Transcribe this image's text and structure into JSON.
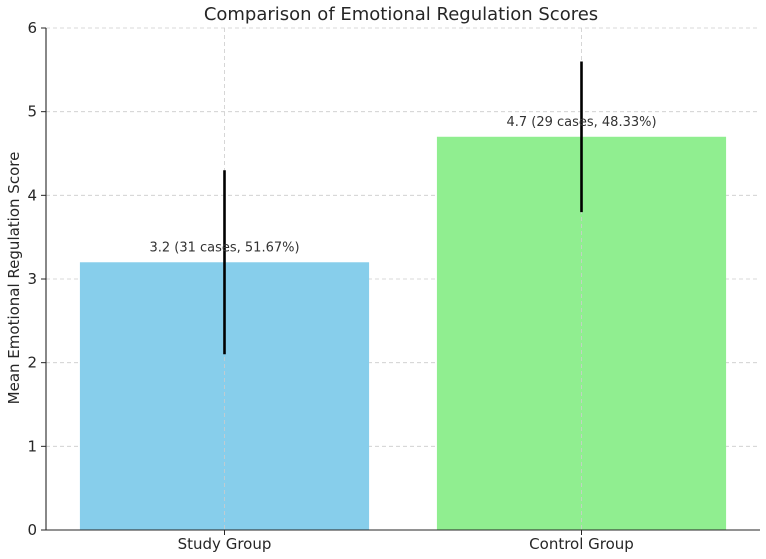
{
  "chart_data": {
    "type": "bar",
    "title": "Comparison of Emotional Regulation Scores",
    "xlabel": "",
    "ylabel": "Mean Emotional Regulation Score",
    "ylim": [
      0,
      6
    ],
    "yticks": [
      0,
      1,
      2,
      3,
      4,
      5,
      6
    ],
    "ytick_labels": [
      "0",
      "1",
      "2",
      "3",
      "4",
      "5",
      "6"
    ],
    "grid": true,
    "categories": [
      "Study Group",
      "Control Group"
    ],
    "values": [
      3.2,
      4.7
    ],
    "error_low": [
      2.1,
      3.8
    ],
    "error_high": [
      4.3,
      5.6
    ],
    "colors": [
      "#87ceeb",
      "#90ee90"
    ],
    "data_labels": [
      "3.2 (31 cases, 51.67%)",
      "4.7 (29 cases, 48.33%)"
    ]
  }
}
